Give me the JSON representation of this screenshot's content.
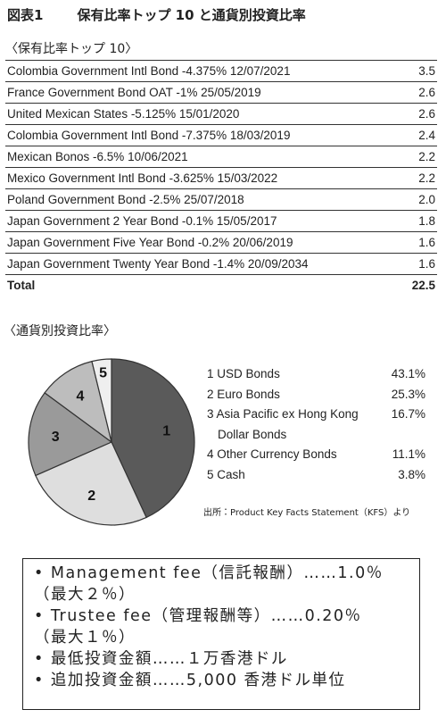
{
  "header": {
    "label": "図表1",
    "title": "保有比率トップ 10 と通貨別投資比率"
  },
  "holdings": {
    "heading": "〈保有比率トップ 10〉",
    "rows": [
      [
        "Colombia Government Intl Bond -4.375% 12/07/2021",
        "3.5"
      ],
      [
        "France Government Bond OAT -1% 25/05/2019",
        "2.6"
      ],
      [
        "United Mexican States -5.125% 15/01/2020",
        "2.6"
      ],
      [
        "Colombia Government Intl Bond -7.375% 18/03/2019",
        "2.4"
      ],
      [
        "Mexican Bonos -6.5% 10/06/2021",
        "2.2"
      ],
      [
        "Mexico Government Intl Bond -3.625% 15/03/2022",
        "2.2"
      ],
      [
        "Poland Government Bond -2.5% 25/07/2018",
        "2.0"
      ],
      [
        "Japan Government 2 Year Bond -0.1% 15/05/2017",
        "1.8"
      ],
      [
        "Japan Government Five Year Bond -0.2% 20/06/2019",
        "1.6"
      ],
      [
        "Japan Government Twenty Year Bond -1.4% 20/09/2034",
        "1.6"
      ]
    ],
    "total": [
      "Total",
      "22.5"
    ]
  },
  "currency": {
    "heading": "〈通貨別投資比率〉",
    "type": "pie",
    "slices": [
      {
        "number": "1",
        "name": "USD Bonds",
        "value": 43.1,
        "value_label": "43.1%",
        "color": "#5a5a5a"
      },
      {
        "number": "2",
        "name": "Euro Bonds",
        "value": 25.3,
        "value_label": "25.3%",
        "color": "#dedede"
      },
      {
        "number": "3",
        "name": "Asia Pacific ex Hong Kong Dollar Bonds",
        "value": 16.7,
        "value_label": "16.7%",
        "color": "#9a9a9a"
      },
      {
        "number": "4",
        "name": "Other Currency Bonds",
        "value": 11.1,
        "value_label": "11.1%",
        "color": "#bdbdbd"
      },
      {
        "number": "5",
        "name": "Cash",
        "value": 3.8,
        "value_label": "3.8%",
        "color": "#efefef"
      }
    ],
    "source": "出所：Product Key Facts Statement（KFS）より"
  },
  "fees": [
    [
      "Management fee（信託報酬）……1.0％",
      "（最大２％）"
    ],
    [
      "Trustee fee（管理報酬等）……0.20％",
      "（最大１％）"
    ],
    [
      "最低投資金額……１万香港ドル"
    ],
    [
      "追加投資金額……5,000 香港ドル単位"
    ]
  ]
}
